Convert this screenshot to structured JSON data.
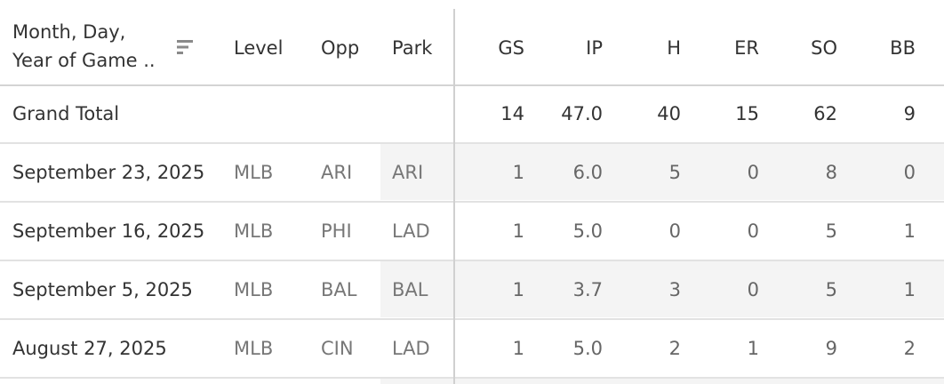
{
  "table": {
    "headers": {
      "date": "Month, Day,",
      "date_line2": "Year of Game ..",
      "level": "Level",
      "opp": "Opp",
      "park": "Park",
      "gs": "GS",
      "ip": "IP",
      "h": "H",
      "er": "ER",
      "so": "SO",
      "bb": "BB"
    },
    "grand_total": {
      "label": "Grand Total",
      "gs": "14",
      "ip": "47.0",
      "h": "40",
      "er": "15",
      "so": "62",
      "bb": "9"
    },
    "rows": [
      {
        "date": "September 23, 2025",
        "level": "MLB",
        "opp": "ARI",
        "park": "ARI",
        "gs": "1",
        "ip": "6.0",
        "h": "5",
        "er": "0",
        "so": "8",
        "bb": "0"
      },
      {
        "date": "September 16, 2025",
        "level": "MLB",
        "opp": "PHI",
        "park": "LAD",
        "gs": "1",
        "ip": "5.0",
        "h": "0",
        "er": "0",
        "so": "5",
        "bb": "1"
      },
      {
        "date": "September 5, 2025",
        "level": "MLB",
        "opp": "BAL",
        "park": "BAL",
        "gs": "1",
        "ip": "3.7",
        "h": "3",
        "er": "0",
        "so": "5",
        "bb": "1"
      },
      {
        "date": "August 27, 2025",
        "level": "MLB",
        "opp": "CIN",
        "park": "LAD",
        "gs": "1",
        "ip": "5.0",
        "h": "2",
        "er": "1",
        "so": "9",
        "bb": "2"
      }
    ]
  },
  "icons": {
    "sort": "sort-descending-icon"
  },
  "colors": {
    "header_text": "#333333",
    "dimension_text": "#777777",
    "measure_text": "#666666",
    "shade": "#f4f4f4",
    "divider": "#d0d0d0"
  }
}
